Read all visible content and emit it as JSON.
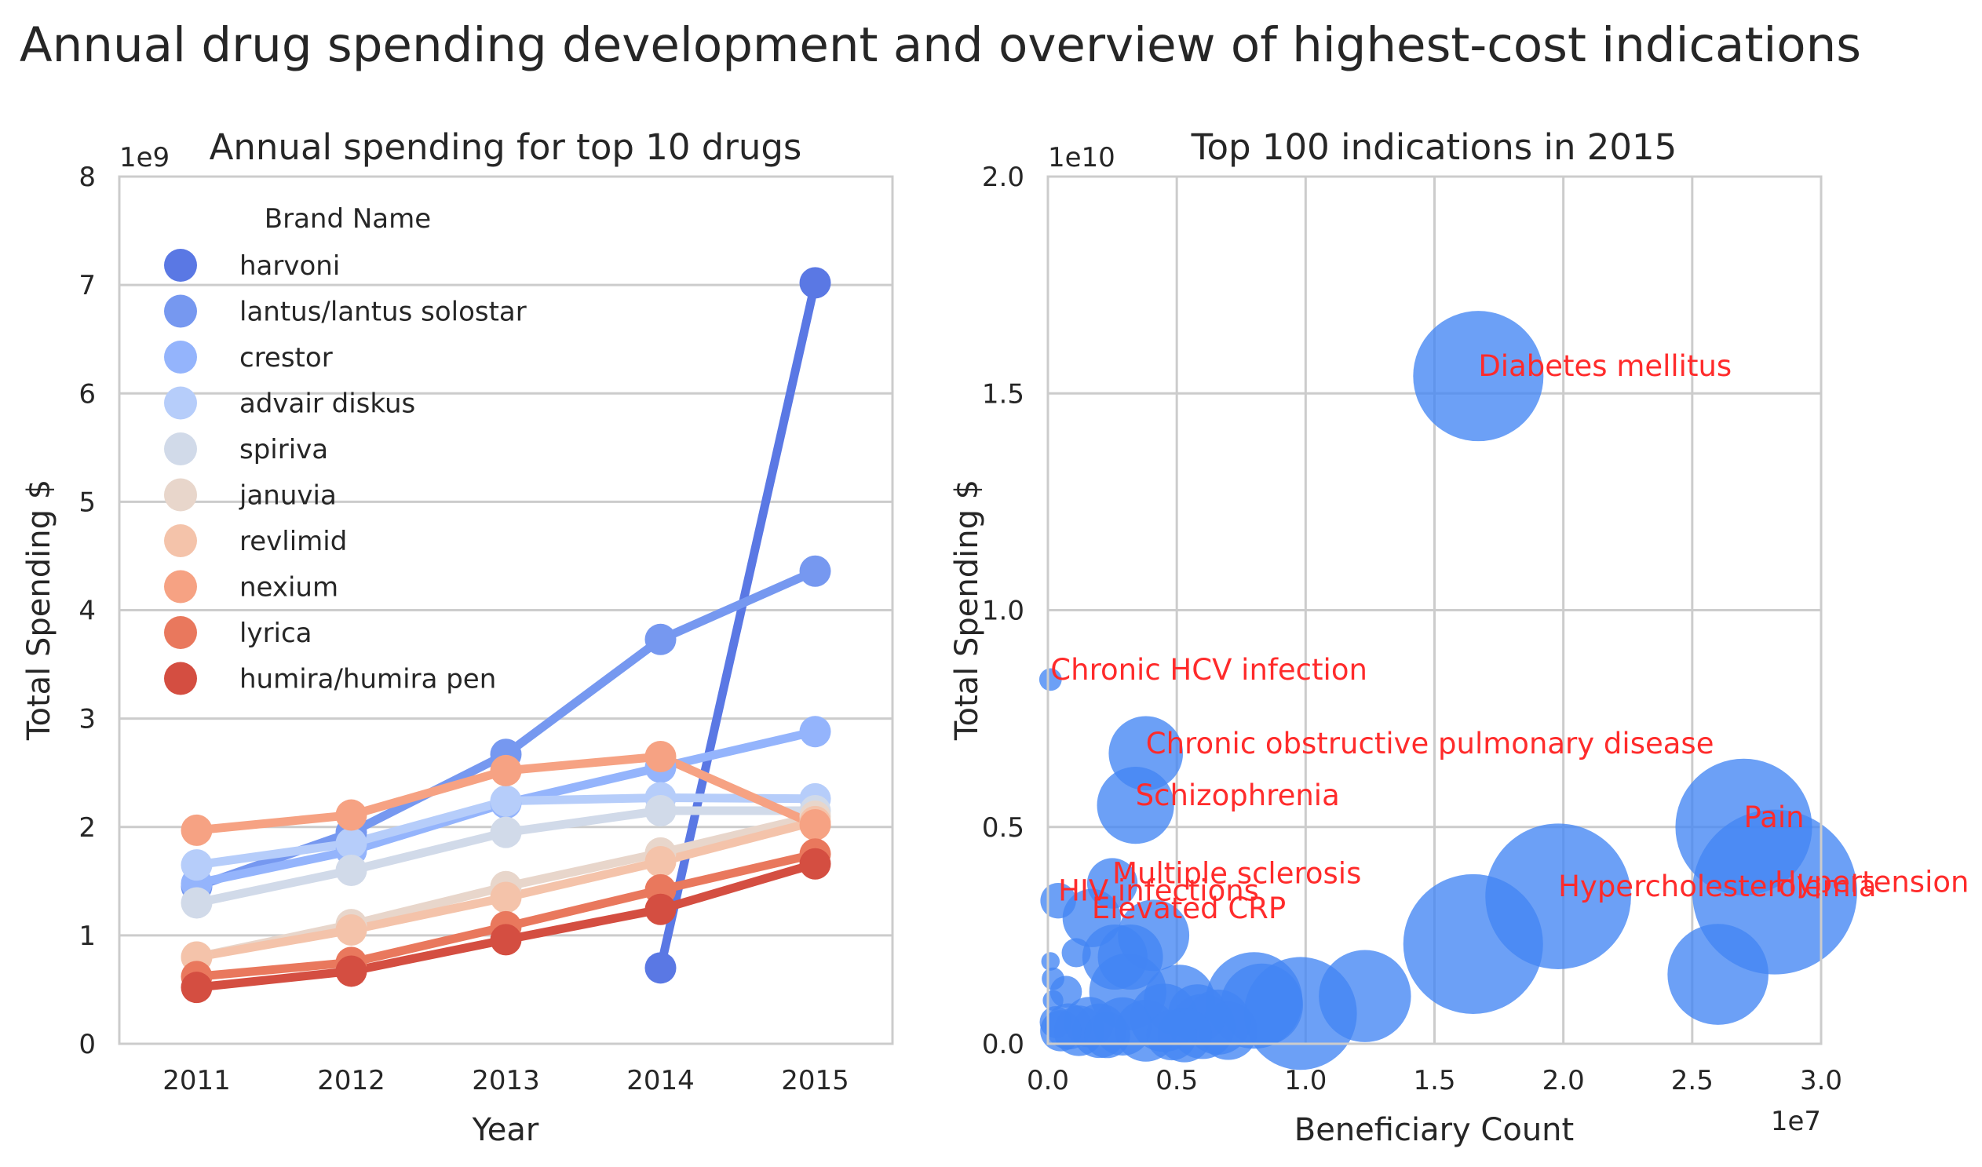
{
  "suptitle": "Annual drug spending development and overview of highest-cost indications",
  "chart_data": [
    {
      "type": "line",
      "title": "Annual spending for top 10 drugs",
      "xlabel": "Year",
      "ylabel": "Total Spending $",
      "categories": [
        "2011",
        "2012",
        "2013",
        "2014",
        "2015"
      ],
      "y_offset_label": "1e9",
      "ylim": [
        0,
        8
      ],
      "yticks": [
        0,
        1,
        2,
        3,
        4,
        5,
        6,
        7,
        8
      ],
      "ytick_labels": [
        "0",
        "1",
        "2",
        "3",
        "4",
        "5",
        "6",
        "7",
        "8"
      ],
      "grid": "horizontal",
      "legend": {
        "title": "Brand Name",
        "placement": "upper-left"
      },
      "series": [
        {
          "name": "harvoni",
          "color": "#5a78e4",
          "values": [
            null,
            null,
            null,
            0.7,
            7.02
          ]
        },
        {
          "name": "lantus/lantus solostar",
          "color": "#7698f0",
          "values": [
            1.45,
            1.95,
            2.67,
            3.73,
            4.36
          ]
        },
        {
          "name": "crestor",
          "color": "#94b4fc",
          "values": [
            1.48,
            1.78,
            2.22,
            2.55,
            2.88
          ]
        },
        {
          "name": "advair diskus",
          "color": "#b6cdfa",
          "values": [
            1.65,
            1.85,
            2.24,
            2.27,
            2.26
          ]
        },
        {
          "name": "spiriva",
          "color": "#d1dae9",
          "values": [
            1.3,
            1.6,
            1.95,
            2.15,
            2.15
          ]
        },
        {
          "name": "januvia",
          "color": "#e8d6cb",
          "values": [
            0.8,
            1.1,
            1.45,
            1.76,
            2.1
          ]
        },
        {
          "name": "revlimid",
          "color": "#f4c3aa",
          "values": [
            0.8,
            1.05,
            1.35,
            1.68,
            2.05
          ]
        },
        {
          "name": "nexium",
          "color": "#f6a283",
          "values": [
            1.97,
            2.11,
            2.52,
            2.65,
            2.02
          ]
        },
        {
          "name": "lyrica",
          "color": "#e9785d",
          "values": [
            0.62,
            0.75,
            1.08,
            1.42,
            1.75
          ]
        },
        {
          "name": "humira/humira pen",
          "color": "#d44e41",
          "values": [
            0.52,
            0.67,
            0.96,
            1.24,
            1.66
          ]
        }
      ]
    },
    {
      "type": "scatter",
      "title": "Top 100 indications in 2015",
      "xlabel": "Beneficiary Count",
      "ylabel": "Total Spending $",
      "x_offset_label": "1e7",
      "y_offset_label": "1e10",
      "xlim": [
        0,
        3.0
      ],
      "ylim": [
        0,
        2.0
      ],
      "xticks": [
        0,
        0.5,
        1.0,
        1.5,
        2.0,
        2.5,
        3.0
      ],
      "xtick_labels": [
        "0.0",
        "0.5",
        "1.0",
        "1.5",
        "2.0",
        "2.5",
        "3.0"
      ],
      "yticks": [
        0,
        0.5,
        1.0,
        1.5,
        2.0
      ],
      "ytick_labels": [
        "0.0",
        "0.5",
        "1.0",
        "1.5",
        "2.0"
      ],
      "grid": "both",
      "marker_color": "#4285f4",
      "annotation_color": "#ff2b2b",
      "points": [
        {
          "label": "Diabetes mellitus",
          "x": 1.67,
          "y": 1.54,
          "size": 2.0
        },
        {
          "label": "Chronic HCV infection",
          "x": 0.01,
          "y": 0.84,
          "size": 0.06
        },
        {
          "label": "Chronic obstructive pulmonary disease",
          "x": 0.38,
          "y": 0.67,
          "size": 0.65
        },
        {
          "label": "Schizophrenia",
          "x": 0.34,
          "y": 0.55,
          "size": 0.7
        },
        {
          "label": "Pain",
          "x": 2.7,
          "y": 0.5,
          "size": 2.2
        },
        {
          "label": "Hypertension",
          "x": 2.82,
          "y": 0.35,
          "size": 3.2
        },
        {
          "label": "Hypercholesterolemia",
          "x": 1.98,
          "y": 0.34,
          "size": 2.5
        },
        {
          "label": "Multiple sclerosis",
          "x": 0.25,
          "y": 0.37,
          "size": 0.3
        },
        {
          "label": "HIV infections",
          "x": 0.04,
          "y": 0.33,
          "size": 0.15
        },
        {
          "label": "Elevated CRP",
          "x": 0.17,
          "y": 0.29,
          "size": 0.4
        },
        {
          "label": "",
          "x": 1.65,
          "y": 0.23,
          "size": 2.3
        },
        {
          "label": "",
          "x": 2.6,
          "y": 0.16,
          "size": 1.2
        },
        {
          "label": "",
          "x": 1.23,
          "y": 0.11,
          "size": 1.0
        },
        {
          "label": "",
          "x": 0.98,
          "y": 0.07,
          "size": 1.5
        },
        {
          "label": "",
          "x": 0.8,
          "y": 0.1,
          "size": 1.1
        },
        {
          "label": "",
          "x": 0.83,
          "y": 0.09,
          "size": 0.8
        },
        {
          "label": "",
          "x": 0.41,
          "y": 0.25,
          "size": 0.6
        },
        {
          "label": "",
          "x": 0.31,
          "y": 0.12,
          "size": 0.7
        },
        {
          "label": "",
          "x": 0.32,
          "y": 0.2,
          "size": 0.5
        },
        {
          "label": "",
          "x": 0.26,
          "y": 0.2,
          "size": 0.5
        },
        {
          "label": "",
          "x": 0.51,
          "y": 0.1,
          "size": 0.6
        },
        {
          "label": "",
          "x": 0.45,
          "y": 0.06,
          "size": 0.55
        },
        {
          "label": "",
          "x": 0.6,
          "y": 0.04,
          "size": 0.5
        },
        {
          "label": "",
          "x": 0.66,
          "y": 0.05,
          "size": 0.5
        },
        {
          "label": "",
          "x": 0.7,
          "y": 0.03,
          "size": 0.4
        },
        {
          "label": "",
          "x": 0.38,
          "y": 0.03,
          "size": 0.45
        },
        {
          "label": "",
          "x": 0.29,
          "y": 0.04,
          "size": 0.4
        },
        {
          "label": "",
          "x": 0.2,
          "y": 0.03,
          "size": 0.35
        },
        {
          "label": "",
          "x": 0.16,
          "y": 0.05,
          "size": 0.3
        },
        {
          "label": "",
          "x": 0.12,
          "y": 0.03,
          "size": 0.3
        },
        {
          "label": "",
          "x": 0.08,
          "y": 0.04,
          "size": 0.25
        },
        {
          "label": "",
          "x": 0.05,
          "y": 0.03,
          "size": 0.2
        },
        {
          "label": "",
          "x": 0.03,
          "y": 0.05,
          "size": 0.12
        },
        {
          "label": "",
          "x": 0.07,
          "y": 0.12,
          "size": 0.12
        },
        {
          "label": "",
          "x": 0.11,
          "y": 0.21,
          "size": 0.1
        },
        {
          "label": "",
          "x": 0.02,
          "y": 0.15,
          "size": 0.06
        },
        {
          "label": "",
          "x": 0.01,
          "y": 0.19,
          "size": 0.04
        },
        {
          "label": "",
          "x": 0.02,
          "y": 0.1,
          "size": 0.05
        },
        {
          "label": "",
          "x": 0.58,
          "y": 0.07,
          "size": 0.4
        },
        {
          "label": "",
          "x": 0.53,
          "y": 0.02,
          "size": 0.35
        },
        {
          "label": "",
          "x": 0.48,
          "y": 0.02,
          "size": 0.3
        },
        {
          "label": "",
          "x": 0.23,
          "y": 0.02,
          "size": 0.25
        }
      ]
    }
  ]
}
